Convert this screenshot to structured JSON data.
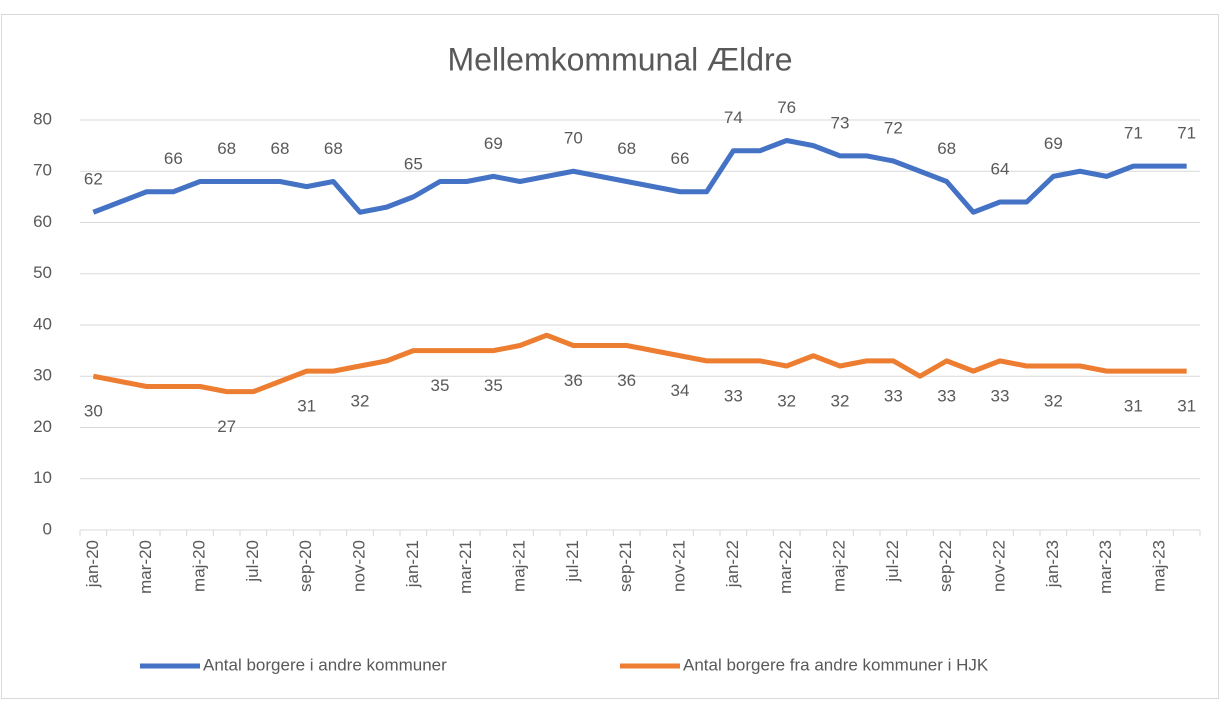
{
  "chart_data": {
    "type": "line",
    "title": "Mellemkommunal  Ældre",
    "categories": [
      "jan-20",
      null,
      "mar-20",
      null,
      "maj-20",
      null,
      "jul-20",
      null,
      "sep-20",
      null,
      "nov-20",
      null,
      "jan-21",
      null,
      "mar-21",
      null,
      "maj-21",
      null,
      "jul-21",
      null,
      "sep-21",
      null,
      "nov-21",
      null,
      "jan-22",
      null,
      "mar-22",
      null,
      "maj-22",
      null,
      "jul-22",
      null,
      "sep-22",
      null,
      "nov-22",
      null,
      "jan-23",
      null,
      "mar-23",
      null,
      "maj-23",
      null
    ],
    "series": [
      {
        "name": "Antal borgere i andre kommuner",
        "color": "#4472c4",
        "values": [
          62,
          64,
          66,
          66,
          68,
          68,
          68,
          68,
          67,
          68,
          62,
          63,
          65,
          68,
          68,
          69,
          68,
          69,
          70,
          69,
          68,
          67,
          66,
          66,
          74,
          74,
          76,
          75,
          73,
          73,
          72,
          70,
          68,
          62,
          64,
          64,
          69,
          70,
          69,
          71,
          71,
          71
        ],
        "value_labels": [
          "62",
          null,
          null,
          "66",
          null,
          "68",
          null,
          "68",
          null,
          "68",
          null,
          null,
          "65",
          null,
          null,
          "69",
          null,
          null,
          "70",
          null,
          "68",
          null,
          "66",
          null,
          "74",
          null,
          "76",
          null,
          "73",
          null,
          "72",
          null,
          "68",
          null,
          "64",
          null,
          "69",
          null,
          null,
          "71",
          null,
          "71"
        ]
      },
      {
        "name": "Antal borgere fra andre kommuner i HJK",
        "color": "#ed7d31",
        "values": [
          30,
          29,
          28,
          28,
          28,
          27,
          27,
          29,
          31,
          31,
          32,
          33,
          35,
          35,
          35,
          35,
          36,
          38,
          36,
          36,
          36,
          35,
          34,
          33,
          33,
          33,
          32,
          34,
          32,
          33,
          33,
          30,
          33,
          31,
          33,
          32,
          32,
          32,
          31,
          31,
          31,
          31
        ],
        "value_labels": [
          "30",
          null,
          null,
          null,
          null,
          "27",
          null,
          null,
          "31",
          null,
          "32",
          null,
          null,
          "35",
          null,
          "35",
          null,
          null,
          "36",
          null,
          "36",
          null,
          "34",
          null,
          "33",
          null,
          "32",
          null,
          "32",
          null,
          "33",
          null,
          "33",
          null,
          "33",
          null,
          "32",
          null,
          null,
          "31",
          null,
          "31"
        ]
      }
    ],
    "ylim": [
      0,
      80
    ],
    "yticks": [
      0,
      10,
      20,
      30,
      40,
      50,
      60,
      70,
      80
    ],
    "grid": true,
    "legend": "bottom"
  }
}
